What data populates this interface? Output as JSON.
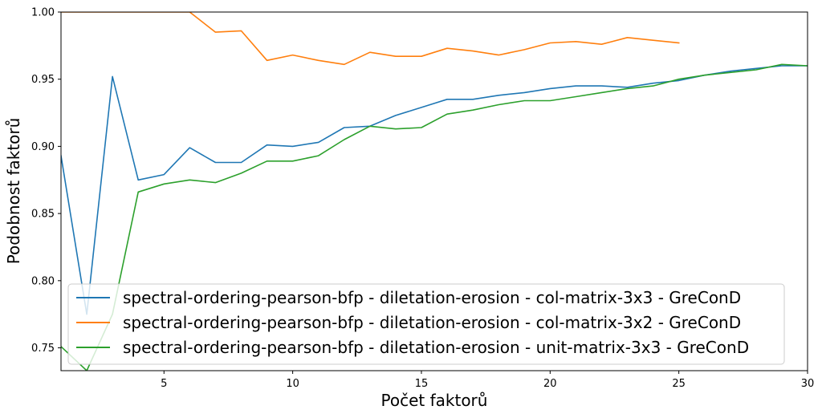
{
  "chart_data": {
    "type": "line",
    "xlabel": "Počet faktorů",
    "ylabel": "Podobnost faktorů",
    "xlim": [
      1,
      30
    ],
    "ylim": [
      0.733,
      1.0
    ],
    "xticks": [
      5,
      10,
      15,
      20,
      25,
      30
    ],
    "xtick_labels": [
      "5",
      "10",
      "15",
      "20",
      "25",
      "30"
    ],
    "yticks": [
      0.75,
      0.8,
      0.85,
      0.9,
      0.95,
      1.0
    ],
    "ytick_labels": [
      "0.75",
      "0.80",
      "0.85",
      "0.90",
      "0.95",
      "1.00"
    ],
    "grid": false,
    "legend_position": "lower-right",
    "series": [
      {
        "name": "spectral-ordering-pearson-bfp - diletation-erosion - col-matrix-3x3 - GreConD",
        "color": "#1f77b4",
        "x": [
          1,
          2,
          3,
          4,
          5,
          6,
          7,
          8,
          9,
          10,
          11,
          12,
          13,
          14,
          15,
          16,
          17,
          18,
          19,
          20,
          21,
          22,
          23,
          24,
          25,
          26,
          27,
          28,
          29,
          30
        ],
        "y": [
          0.893,
          0.775,
          0.952,
          0.875,
          0.879,
          0.899,
          0.888,
          0.888,
          0.901,
          0.9,
          0.903,
          0.914,
          0.915,
          0.923,
          0.929,
          0.935,
          0.935,
          0.938,
          0.94,
          0.943,
          0.945,
          0.945,
          0.944,
          0.947,
          0.949,
          0.953,
          0.956,
          0.958,
          0.96,
          0.96
        ]
      },
      {
        "name": "spectral-ordering-pearson-bfp - diletation-erosion - col-matrix-3x2 - GreConD",
        "color": "#ff7f0e",
        "x": [
          1,
          2,
          3,
          4,
          5,
          6,
          7,
          8,
          9,
          10,
          11,
          12,
          13,
          14,
          15,
          16,
          17,
          18,
          19,
          20,
          21,
          22,
          23,
          24,
          25
        ],
        "y": [
          1.0,
          1.0,
          1.0,
          1.0,
          1.0,
          1.0,
          0.985,
          0.986,
          0.964,
          0.968,
          0.964,
          0.961,
          0.97,
          0.967,
          0.967,
          0.973,
          0.971,
          0.968,
          0.972,
          0.977,
          0.978,
          0.976,
          0.981,
          0.979,
          0.977
        ]
      },
      {
        "name": "spectral-ordering-pearson-bfp - diletation-erosion - unit-matrix-3x3 - GreConD",
        "color": "#2ca02c",
        "x": [
          1,
          2,
          3,
          4,
          5,
          6,
          7,
          8,
          9,
          10,
          11,
          12,
          13,
          14,
          15,
          16,
          17,
          18,
          19,
          20,
          21,
          22,
          23,
          24,
          25,
          26,
          27,
          28,
          29,
          30
        ],
        "y": [
          0.751,
          0.733,
          0.775,
          0.866,
          0.872,
          0.875,
          0.873,
          0.88,
          0.889,
          0.889,
          0.893,
          0.905,
          0.915,
          0.913,
          0.914,
          0.924,
          0.927,
          0.931,
          0.934,
          0.934,
          0.937,
          0.94,
          0.943,
          0.945,
          0.95,
          0.953,
          0.955,
          0.957,
          0.961,
          0.96
        ]
      }
    ]
  }
}
